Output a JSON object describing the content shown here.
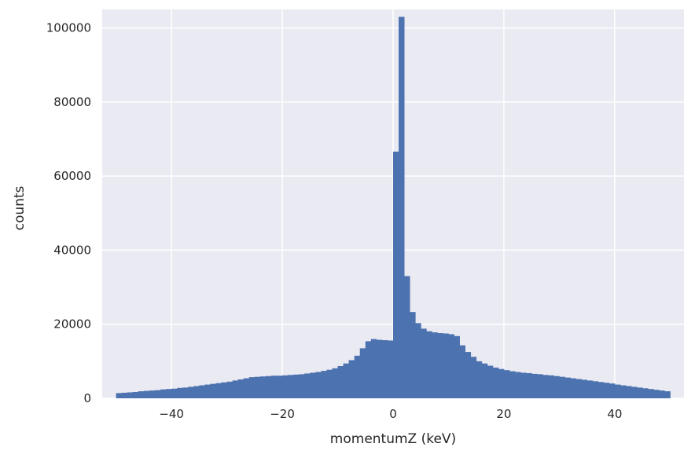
{
  "chart_data": {
    "type": "bar",
    "title": "",
    "xlabel": "momentumZ (keV)",
    "ylabel": "counts",
    "xlim": [
      -52.5,
      52.5
    ],
    "ylim": [
      0,
      105000
    ],
    "xticks": [
      -40,
      -20,
      0,
      20,
      40
    ],
    "xtick_labels": [
      "−40",
      "−20",
      "0",
      "20",
      "40"
    ],
    "yticks": [
      0,
      20000,
      40000,
      60000,
      80000,
      100000
    ],
    "ytick_labels": [
      "0",
      "20000",
      "40000",
      "60000",
      "80000",
      "100000"
    ],
    "grid": true,
    "legend": "none",
    "colors": {
      "bars": "#4c72b0",
      "plot_background": "#eaeaf2",
      "grid": "#ffffff"
    },
    "bin_edges": [
      -50,
      50
    ],
    "bin_width": 1,
    "counts": [
      1400,
      1500,
      1600,
      1700,
      1900,
      2000,
      2100,
      2200,
      2400,
      2500,
      2600,
      2800,
      2900,
      3100,
      3300,
      3500,
      3700,
      3900,
      4100,
      4300,
      4500,
      4800,
      5100,
      5400,
      5700,
      5800,
      5900,
      6000,
      6100,
      6100,
      6200,
      6300,
      6400,
      6500,
      6700,
      6900,
      7100,
      7400,
      7700,
      8100,
      8700,
      9400,
      10300,
      11500,
      13500,
      15400,
      16000,
      15800,
      15700,
      15600,
      66600,
      103000,
      33000,
      23300,
      20300,
      18800,
      18100,
      17800,
      17600,
      17500,
      17300,
      16800,
      14300,
      12500,
      11200,
      10000,
      9400,
      8800,
      8300,
      7900,
      7600,
      7300,
      7100,
      6900,
      6800,
      6600,
      6500,
      6300,
      6200,
      6000,
      5800,
      5600,
      5400,
      5200,
      5000,
      4800,
      4600,
      4400,
      4200,
      4000,
      3700,
      3500,
      3300,
      3100,
      2900,
      2700,
      2500,
      2300,
      2100,
      1900
    ]
  }
}
